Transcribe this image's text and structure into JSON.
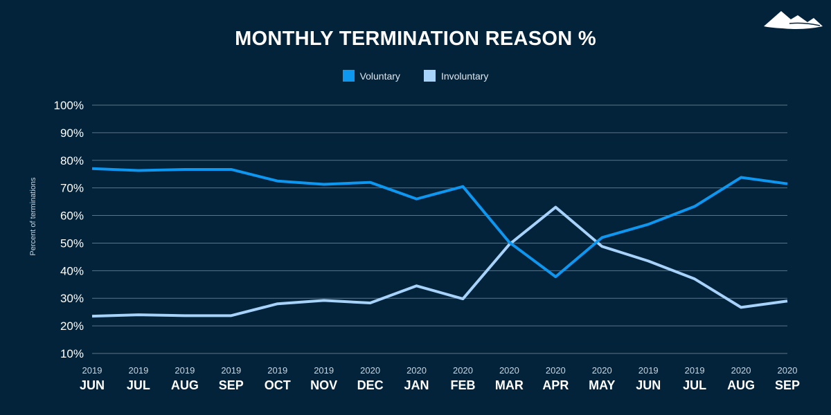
{
  "chart_data": {
    "type": "line",
    "title": "MONTHLY TERMINATION REASON %",
    "ylabel": "Percent of terminations",
    "xlabel": "",
    "ylim": [
      10,
      100
    ],
    "yticks": [
      "10%",
      "20%",
      "30%",
      "40%",
      "50%",
      "60%",
      "70%",
      "80%",
      "90%",
      "100%"
    ],
    "grid": true,
    "legend_placement": "top-center",
    "categories": [
      {
        "month": "JUN",
        "year": "2019"
      },
      {
        "month": "JUL",
        "year": "2019"
      },
      {
        "month": "AUG",
        "year": "2019"
      },
      {
        "month": "SEP",
        "year": "2019"
      },
      {
        "month": "OCT",
        "year": "2019"
      },
      {
        "month": "NOV",
        "year": "2019"
      },
      {
        "month": "DEC",
        "year": "2020"
      },
      {
        "month": "JAN",
        "year": "2020"
      },
      {
        "month": "FEB",
        "year": "2020"
      },
      {
        "month": "MAR",
        "year": "2020"
      },
      {
        "month": "APR",
        "year": "2020"
      },
      {
        "month": "MAY",
        "year": "2020"
      },
      {
        "month": "JUN",
        "year": "2019"
      },
      {
        "month": "JUL",
        "year": "2019"
      },
      {
        "month": "AUG",
        "year": "2020"
      },
      {
        "month": "SEP",
        "year": "2020"
      }
    ],
    "series": [
      {
        "name": "Voluntary",
        "color": "#0e97f0",
        "values": [
          77,
          76.3,
          76.7,
          76.7,
          72.5,
          71.3,
          72,
          66,
          70.5,
          50.3,
          37.8,
          52,
          56.8,
          63.3,
          73.8,
          71.5
        ]
      },
      {
        "name": "Involuntary",
        "color": "#a7d3fb",
        "values": [
          23.5,
          24,
          23.7,
          23.7,
          28,
          29.2,
          28.3,
          34.5,
          29.8,
          49.5,
          63,
          48.8,
          43.5,
          37,
          26.7,
          29
        ]
      }
    ]
  },
  "colors": {
    "background": "#03233b",
    "grid": "#5d7487"
  },
  "logo": {
    "icon": "mountain-logo-icon"
  }
}
